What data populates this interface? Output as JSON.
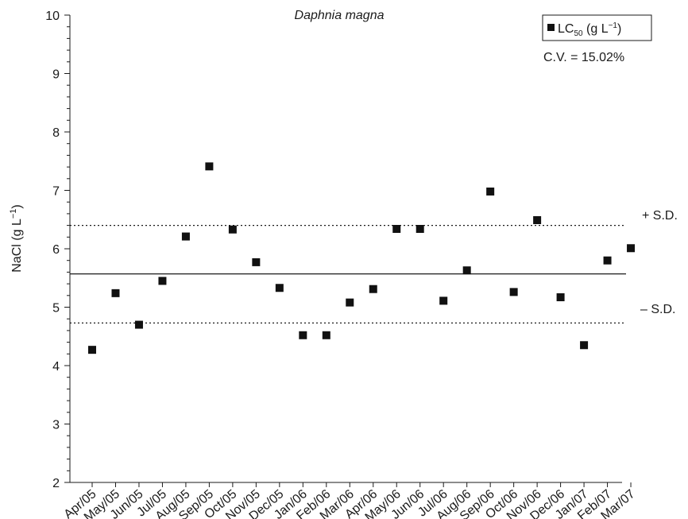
{
  "chart_data": {
    "type": "scatter",
    "title": "Daphnia magna",
    "ylabel_main": "NaCl (g L",
    "ylabel_sup": "−1",
    "ylabel_close": ")",
    "ylim": [
      2,
      10
    ],
    "yticks": [
      2,
      3,
      4,
      5,
      6,
      7,
      8,
      9,
      10
    ],
    "categories": [
      "Apr/05",
      "May/05",
      "Jun/05",
      "Jul/05",
      "Aug/05",
      "Sep/05",
      "Oct/05",
      "Nov/05",
      "Dec/05",
      "Jan/06",
      "Feb/06",
      "Mar/06",
      "Apr/06",
      "May/06",
      "Jun/06",
      "Jul/06",
      "Aug/06",
      "Sep/06",
      "Oct/06",
      "Nov/06",
      "Dec/06",
      "Jan/07",
      "Feb/07",
      "Mar/07"
    ],
    "series": [
      {
        "name_main": "LC",
        "name_sub": "50",
        "name_rest": " (g L",
        "name_sup": "−1",
        "name_close": ")",
        "marker": "square",
        "color": "#111111",
        "values": [
          4.27,
          5.24,
          4.7,
          5.45,
          6.21,
          7.41,
          6.33,
          5.77,
          5.33,
          4.52,
          4.52,
          5.08,
          5.31,
          6.34,
          6.34,
          5.11,
          5.63,
          6.98,
          5.26,
          6.49,
          5.17,
          4.35,
          5.8,
          6.01
        ]
      }
    ],
    "mean": 5.57,
    "plus_sd": 6.4,
    "minus_sd": 4.73,
    "plus_sd_label": "+ S.D.",
    "minus_sd_label": "– S.D.",
    "cv_text": "C.V. = 15.02%",
    "grid": false,
    "legend_position": "top-right"
  }
}
